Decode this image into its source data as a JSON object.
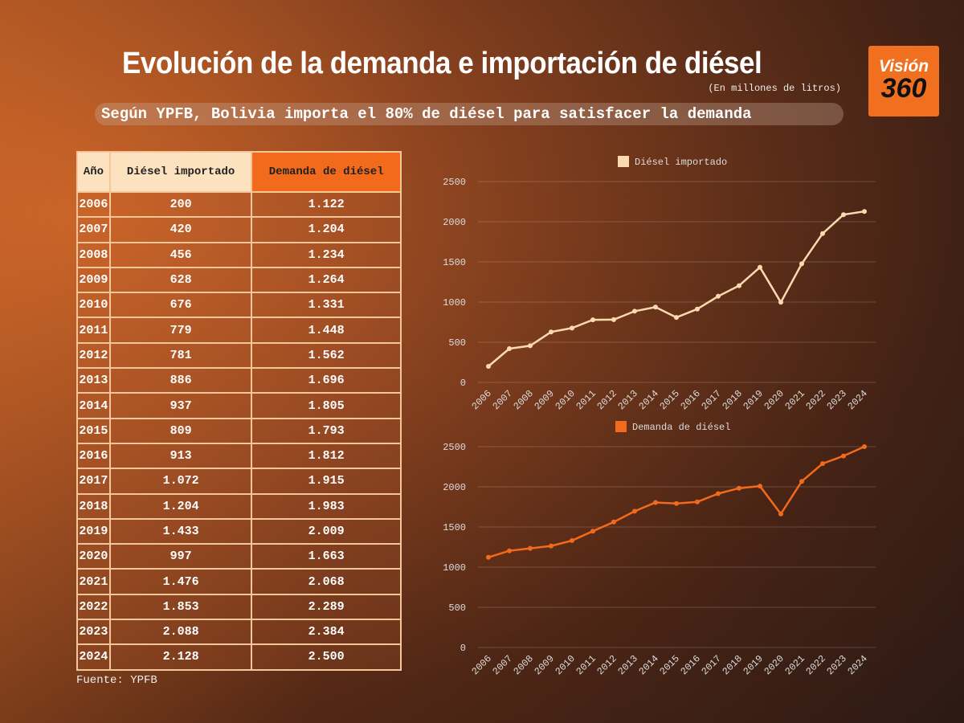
{
  "header": {
    "title": "Evolución de la demanda e importación de diésel",
    "unit": "(En millones de litros)",
    "subtitle": "Según YPFB, Bolivia importa el 80% de diésel para satisfacer la demanda"
  },
  "logo": {
    "line1": "Visión",
    "line2": "360"
  },
  "table": {
    "headers": [
      "Año",
      "Diésel importado",
      "Demanda de diésel"
    ],
    "rows": [
      [
        "2006",
        "200",
        "1.122"
      ],
      [
        "2007",
        "420",
        "1.204"
      ],
      [
        "2008",
        "456",
        "1.234"
      ],
      [
        "2009",
        "628",
        "1.264"
      ],
      [
        "2010",
        "676",
        "1.331"
      ],
      [
        "2011",
        "779",
        "1.448"
      ],
      [
        "2012",
        "781",
        "1.562"
      ],
      [
        "2013",
        "886",
        "1.696"
      ],
      [
        "2014",
        "937",
        "1.805"
      ],
      [
        "2015",
        "809",
        "1.793"
      ],
      [
        "2016",
        "913",
        "1.812"
      ],
      [
        "2017",
        "1.072",
        "1.915"
      ],
      [
        "2018",
        "1.204",
        "1.983"
      ],
      [
        "2019",
        "1.433",
        "2.009"
      ],
      [
        "2020",
        "997",
        "1.663"
      ],
      [
        "2021",
        "1.476",
        "2.068"
      ],
      [
        "2022",
        "1.853",
        "2.289"
      ],
      [
        "2023",
        "2.088",
        "2.384"
      ],
      [
        "2024",
        "2.128",
        "2.500"
      ]
    ]
  },
  "source": "Fuente: YPFB",
  "chart_data": [
    {
      "type": "line",
      "title": "",
      "legend": "Diésel importado",
      "color": "#fdd9b0",
      "x": [
        "2006",
        "2007",
        "2008",
        "2009",
        "2010",
        "2011",
        "2012",
        "2013",
        "2014",
        "2015",
        "2016",
        "2017",
        "2018",
        "2019",
        "2020",
        "2021",
        "2022",
        "2023",
        "2024"
      ],
      "values": [
        200,
        420,
        456,
        628,
        676,
        779,
        781,
        886,
        937,
        809,
        913,
        1072,
        1204,
        1433,
        997,
        1476,
        1853,
        2088,
        2128
      ],
      "ylim": [
        0,
        2500
      ],
      "yticks": [
        0,
        500,
        1000,
        1500,
        2000,
        2500
      ],
      "legend_position": "top-center"
    },
    {
      "type": "line",
      "title": "",
      "legend": "Demanda de diésel",
      "color": "#f26a1b",
      "x": [
        "2006",
        "2007",
        "2008",
        "2009",
        "2010",
        "2011",
        "2012",
        "2013",
        "2014",
        "2015",
        "2016",
        "2017",
        "2018",
        "2019",
        "2020",
        "2021",
        "2022",
        "2023",
        "2024"
      ],
      "values": [
        1122,
        1204,
        1234,
        1264,
        1331,
        1448,
        1562,
        1696,
        1805,
        1793,
        1812,
        1915,
        1983,
        2009,
        1663,
        2068,
        2289,
        2384,
        2500
      ],
      "ylim": [
        0,
        2500
      ],
      "yticks": [
        0,
        500,
        1000,
        1500,
        2000,
        2500
      ],
      "legend_position": "top-center"
    }
  ]
}
